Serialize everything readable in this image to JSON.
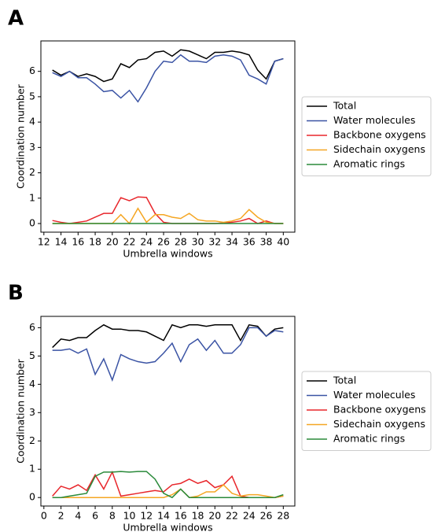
{
  "chart_data": [
    {
      "type": "line",
      "panel_label": "A",
      "xlabel": "Umbrella windows",
      "ylabel": "Coordination number",
      "legend": "right",
      "x": [
        13,
        14,
        15,
        16,
        17,
        18,
        19,
        20,
        21,
        22,
        23,
        24,
        25,
        26,
        27,
        28,
        29,
        30,
        31,
        32,
        33,
        34,
        35,
        36,
        37,
        38,
        39,
        40
      ],
      "xlim": [
        11.65,
        41.35
      ],
      "xticks": [
        12,
        14,
        16,
        18,
        20,
        22,
        24,
        26,
        28,
        30,
        32,
        34,
        36,
        38,
        40
      ],
      "ylim": [
        -0.34,
        7.2
      ],
      "yticks": [
        0,
        1,
        2,
        3,
        4,
        5,
        6
      ],
      "series": [
        {
          "name": "Total",
          "color": "#000000",
          "values": [
            6.05,
            5.85,
            6.0,
            5.8,
            5.9,
            5.8,
            5.6,
            5.7,
            6.3,
            6.15,
            6.45,
            6.5,
            6.75,
            6.8,
            6.6,
            6.85,
            6.8,
            6.65,
            6.5,
            6.75,
            6.75,
            6.8,
            6.75,
            6.65,
            6.05,
            5.7,
            6.4,
            6.5
          ]
        },
        {
          "name": "Water molecules",
          "color": "#3a53a4",
          "values": [
            5.95,
            5.8,
            6.0,
            5.75,
            5.75,
            5.5,
            5.2,
            5.25,
            4.95,
            5.25,
            4.8,
            5.35,
            6.0,
            6.4,
            6.35,
            6.65,
            6.4,
            6.4,
            6.35,
            6.6,
            6.65,
            6.6,
            6.45,
            5.85,
            5.7,
            5.5,
            6.4,
            6.5
          ]
        },
        {
          "name": "Backbone oxygens",
          "color": "#e8262b",
          "values": [
            0.12,
            0.05,
            0.0,
            0.05,
            0.1,
            0.25,
            0.4,
            0.4,
            1.02,
            0.9,
            1.05,
            1.03,
            0.4,
            0.05,
            0.0,
            0,
            0,
            0,
            0,
            0,
            0.02,
            0.05,
            0.1,
            0.2,
            0.0,
            0.1,
            0,
            0
          ]
        },
        {
          "name": "Sidechain oxygens",
          "color": "#f5a623",
          "values": [
            0,
            0,
            0,
            0,
            0,
            0,
            0,
            0,
            0.35,
            0.0,
            0.6,
            0.05,
            0.35,
            0.35,
            0.25,
            0.2,
            0.4,
            0.15,
            0.1,
            0.1,
            0.05,
            0.1,
            0.2,
            0.55,
            0.25,
            0.05,
            0,
            0
          ]
        },
        {
          "name": "Aromatic rings",
          "color": "#2a8a3a",
          "values": [
            0,
            0,
            0,
            0,
            0,
            0,
            0,
            0,
            0,
            0,
            0,
            0,
            0,
            0,
            0,
            0,
            0,
            0,
            0,
            0,
            0,
            0,
            0,
            0,
            0,
            0,
            0,
            0
          ]
        }
      ]
    },
    {
      "type": "line",
      "panel_label": "B",
      "xlabel": "Umbrella windows",
      "ylabel": "Coordination number",
      "legend": "right",
      "x": [
        1,
        2,
        3,
        4,
        5,
        6,
        7,
        8,
        9,
        10,
        11,
        12,
        13,
        14,
        15,
        16,
        17,
        18,
        19,
        20,
        21,
        22,
        23,
        24,
        25,
        26,
        27,
        28
      ],
      "xlim": [
        -0.35,
        29.35
      ],
      "xticks": [
        0,
        2,
        4,
        6,
        8,
        10,
        12,
        14,
        16,
        18,
        20,
        22,
        24,
        26,
        28
      ],
      "ylim": [
        -0.3,
        6.4
      ],
      "yticks": [
        0,
        1,
        2,
        3,
        4,
        5,
        6
      ],
      "series": [
        {
          "name": "Total",
          "color": "#000000",
          "values": [
            5.3,
            5.6,
            5.55,
            5.65,
            5.65,
            5.9,
            6.1,
            5.95,
            5.95,
            5.9,
            5.9,
            5.85,
            5.7,
            5.55,
            6.1,
            6.0,
            6.1,
            6.1,
            6.05,
            6.1,
            6.1,
            6.1,
            5.55,
            6.1,
            6.05,
            5.7,
            5.95,
            6.0
          ]
        },
        {
          "name": "Water molecules",
          "color": "#3a53a4",
          "values": [
            5.2,
            5.2,
            5.25,
            5.1,
            5.25,
            4.35,
            4.9,
            4.15,
            5.05,
            4.9,
            4.8,
            4.75,
            4.8,
            5.1,
            5.45,
            4.8,
            5.4,
            5.6,
            5.2,
            5.55,
            5.1,
            5.1,
            5.4,
            6.0,
            6.0,
            5.7,
            5.9,
            5.85
          ]
        },
        {
          "name": "Backbone oxygens",
          "color": "#e8262b",
          "values": [
            0.05,
            0.4,
            0.3,
            0.45,
            0.25,
            0.8,
            0.3,
            0.9,
            0.05,
            0.1,
            0.15,
            0.2,
            0.25,
            0.2,
            0.45,
            0.5,
            0.65,
            0.5,
            0.6,
            0.35,
            0.45,
            0.75,
            0.05,
            0,
            0,
            0,
            0,
            0.05
          ]
        },
        {
          "name": "Sidechain oxygens",
          "color": "#f5a623",
          "values": [
            0,
            0,
            0,
            0,
            0,
            0,
            0,
            0,
            0,
            0,
            0,
            0,
            0,
            0,
            0.1,
            0.3,
            0.0,
            0.05,
            0.2,
            0.2,
            0.45,
            0.15,
            0.05,
            0.1,
            0.1,
            0.05,
            0.0,
            0.05
          ]
        },
        {
          "name": "Aromatic rings",
          "color": "#2a8a3a",
          "values": [
            0,
            0,
            0.05,
            0.1,
            0.15,
            0.75,
            0.9,
            0.9,
            0.92,
            0.9,
            0.92,
            0.92,
            0.65,
            0.15,
            0,
            0.3,
            0,
            0,
            0,
            0,
            0,
            0,
            0,
            0,
            0,
            0,
            0,
            0.1
          ]
        }
      ]
    }
  ]
}
